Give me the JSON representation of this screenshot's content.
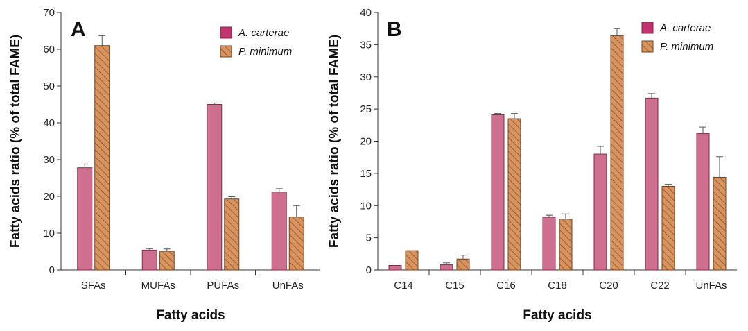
{
  "colors": {
    "series_a": "#cf6f8f",
    "series_a_stroke": "#7a2e4a",
    "series_b": "#d9935e",
    "series_b_stroke": "#6e4426",
    "legend_a": "#c2336f"
  },
  "chart_data": [
    {
      "type": "bar",
      "panel_label": "A",
      "xlabel": "Fatty acids",
      "ylabel": "Fatty acids ratio (% of total FAME)",
      "categories": [
        "SFAs",
        "MUFAs",
        "PUFAs",
        "UnFAs"
      ],
      "ylim": [
        0,
        70
      ],
      "yticks": [
        0,
        10,
        20,
        30,
        40,
        50,
        60,
        70
      ],
      "legend_position": "top-right",
      "series": [
        {
          "name": "A. carterae",
          "values": [
            27.8,
            5.4,
            45.0,
            21.2
          ],
          "errors": [
            1.0,
            0.4,
            0.4,
            0.9
          ]
        },
        {
          "name": "P. minimum",
          "values": [
            61.0,
            5.1,
            19.3,
            14.4
          ],
          "errors": [
            2.7,
            0.6,
            0.6,
            3.1
          ]
        }
      ]
    },
    {
      "type": "bar",
      "panel_label": "B",
      "xlabel": "Fatty acids",
      "ylabel": "Fatty acids ratio (% of total FAME)",
      "categories": [
        "C14",
        "C15",
        "C16",
        "C18",
        "C20",
        "C22",
        "UnFAs"
      ],
      "ylim": [
        0,
        40
      ],
      "yticks": [
        0,
        5,
        10,
        15,
        20,
        25,
        30,
        35,
        40
      ],
      "legend_position": "top-right",
      "series": [
        {
          "name": "A. carterae",
          "values": [
            0.7,
            0.8,
            24.1,
            8.2,
            18.0,
            26.7,
            21.2
          ],
          "errors": [
            0.0,
            0.3,
            0.2,
            0.3,
            1.2,
            0.7,
            1.0
          ]
        },
        {
          "name": "P. minimum",
          "values": [
            3.0,
            1.7,
            23.5,
            7.9,
            36.4,
            13.0,
            14.4
          ],
          "errors": [
            0.0,
            0.6,
            0.8,
            0.8,
            1.1,
            0.3,
            3.2
          ]
        }
      ]
    }
  ]
}
